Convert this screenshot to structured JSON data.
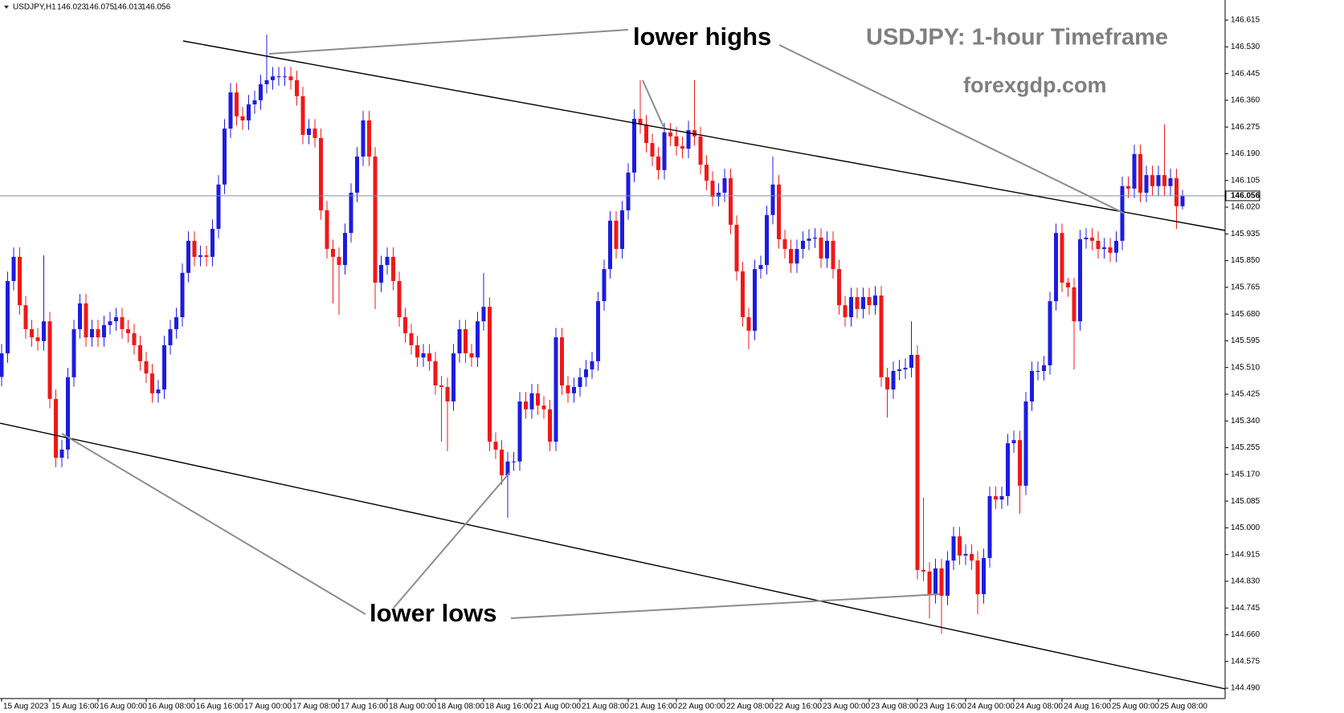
{
  "chart_data": {
    "type": "candlestick",
    "header": "USDJPY,H1",
    "title": "USDJPY: 1-hour Timeframe",
    "subtitle": "forexgdp.com",
    "annotations": [
      "lower highs",
      "lower lows"
    ],
    "up_color": "#1c1ce0",
    "down_color": "#f01818",
    "price_line_color": "#7d8fb3",
    "categories": [
      "15 Aug 2023",
      null,
      null,
      null,
      null,
      null,
      null,
      null,
      "15 Aug 16:00",
      null,
      null,
      null,
      null,
      null,
      null,
      null,
      "16 Aug 00:00",
      null,
      null,
      null,
      null,
      null,
      null,
      null,
      "16 Aug 08:00",
      null,
      null,
      null,
      null,
      null,
      null,
      null,
      "16 Aug 16:00",
      null,
      null,
      null,
      null,
      null,
      null,
      null,
      "17 Aug 00:00",
      null,
      null,
      null,
      null,
      null,
      null,
      null,
      "17 Aug 08:00",
      null,
      null,
      null,
      null,
      null,
      null,
      null,
      "17 Aug 16:00",
      null,
      null,
      null,
      null,
      null,
      null,
      null,
      "18 Aug 00:00",
      null,
      null,
      null,
      null,
      null,
      null,
      null,
      "18 Aug 08:00",
      null,
      null,
      null,
      null,
      null,
      null,
      null,
      "18 Aug 16:00",
      null,
      null,
      null,
      null,
      null,
      null,
      null,
      "21 Aug 00:00",
      null,
      null,
      null,
      null,
      null,
      null,
      null,
      "21 Aug 08:00",
      null,
      null,
      null,
      null,
      null,
      null,
      null,
      "21 Aug 16:00",
      null,
      null,
      null,
      null,
      null,
      null,
      null,
      "22 Aug 00:00",
      null,
      null,
      null,
      null,
      null,
      null,
      null,
      "22 Aug 08:00",
      null,
      null,
      null,
      null,
      null,
      null,
      null,
      "22 Aug 16:00",
      null,
      null,
      null,
      null,
      null,
      null,
      null,
      "23 Aug 00:00",
      null,
      null,
      null,
      null,
      null,
      null,
      null,
      "23 Aug 08:00",
      null,
      null,
      null,
      null,
      null,
      null,
      null,
      "23 Aug 16:00",
      null,
      null,
      null,
      null,
      null,
      null,
      null,
      "24 Aug 00:00",
      null,
      null,
      null,
      null,
      null,
      null,
      null,
      "24 Aug 08:00",
      null,
      null,
      null,
      null,
      null,
      null,
      null,
      "24 Aug 16:00",
      null,
      null,
      null,
      null,
      null,
      null,
      null,
      "25 Aug 00:00",
      null,
      null,
      null,
      null,
      null,
      null,
      null,
      "25 Aug 08:00",
      null,
      null,
      null,
      null
    ],
    "open": [
      145.48,
      145.555,
      145.785,
      145.862,
      145.708,
      145.632,
      145.606,
      145.594,
      145.657,
      145.41,
      145.223,
      145.249,
      145.479,
      145.632,
      145.714,
      145.606,
      145.632,
      145.606,
      145.645,
      145.657,
      145.67,
      145.632,
      145.619,
      145.581,
      145.53,
      145.491,
      145.428,
      145.44,
      145.581,
      145.632,
      145.67,
      145.811,
      145.913,
      145.862,
      145.867,
      145.862,
      145.951,
      146.092,
      146.27,
      146.385,
      146.309,
      146.296,
      146.347,
      146.36,
      146.411,
      146.424,
      146.436,
      146.436,
      146.436,
      146.424,
      146.373,
      146.25,
      146.27,
      146.24,
      146.01,
      145.887,
      145.862,
      145.836,
      145.938,
      146.066,
      146.181,
      146.296,
      146.181,
      145.78,
      145.836,
      145.862,
      145.785,
      145.67,
      145.619,
      145.581,
      145.542,
      145.555,
      145.53,
      145.453,
      145.448,
      145.402,
      145.555,
      145.632,
      145.555,
      145.542,
      145.657,
      145.703,
      145.274,
      145.249,
      145.167,
      145.211,
      145.211,
      145.402,
      145.377,
      145.428,
      145.389,
      145.377,
      145.274,
      145.606,
      145.453,
      145.428,
      145.448,
      145.479,
      145.504,
      145.53,
      145.721,
      145.823,
      145.977,
      145.887,
      146.01,
      146.13,
      146.301,
      146.283,
      146.224,
      146.181,
      146.138,
      146.258,
      146.245,
      146.214,
      146.206,
      146.265,
      146.245,
      146.155,
      146.104,
      146.053,
      146.066,
      146.112,
      145.964,
      145.816,
      145.67,
      145.627,
      145.823,
      145.836,
      145.995,
      146.092,
      145.918,
      145.887,
      145.841,
      145.887,
      145.913,
      145.92,
      145.923,
      145.857,
      145.913,
      145.823,
      145.708,
      145.67,
      145.734,
      145.696,
      145.734,
      145.708,
      145.739,
      145.479,
      145.44,
      145.499,
      145.504,
      145.509,
      145.55,
      144.866,
      144.861,
      144.789,
      144.871,
      144.784,
      144.896,
      144.973,
      144.912,
      144.917,
      144.896,
      144.789,
      144.904,
      145.101,
      145.09,
      145.101,
      145.269,
      145.279,
      145.134,
      145.402,
      145.499,
      145.499,
      145.517,
      145.721,
      145.938,
      145.78,
      145.765,
      145.657,
      145.918,
      145.923,
      145.913,
      145.887,
      145.892,
      145.875,
      145.913,
      146.087,
      146.079,
      146.189,
      146.066,
      146.122,
      146.087,
      146.122,
      146.087,
      146.112,
      146.023
    ],
    "high": [
      145.585,
      145.815,
      145.892,
      145.892,
      145.738,
      145.662,
      145.636,
      145.867,
      145.687,
      145.44,
      145.279,
      145.509,
      145.662,
      145.744,
      145.744,
      145.662,
      145.662,
      145.675,
      145.687,
      145.7,
      145.7,
      145.662,
      145.649,
      145.611,
      145.56,
      145.521,
      145.47,
      145.611,
      145.662,
      145.7,
      145.841,
      145.943,
      145.943,
      145.897,
      145.897,
      145.981,
      146.122,
      146.3,
      146.415,
      146.415,
      146.339,
      146.377,
      146.39,
      146.441,
      146.569,
      146.466,
      146.466,
      146.466,
      146.466,
      146.454,
      146.403,
      146.3,
      146.3,
      146.27,
      146.04,
      145.917,
      145.892,
      145.968,
      146.096,
      146.211,
      146.326,
      146.326,
      146.211,
      145.866,
      145.892,
      145.892,
      145.815,
      145.7,
      145.649,
      145.611,
      145.585,
      145.585,
      145.56,
      145.483,
      145.478,
      145.585,
      145.662,
      145.662,
      145.585,
      145.687,
      145.811,
      145.733,
      145.304,
      145.279,
      145.241,
      145.241,
      145.432,
      145.432,
      145.458,
      145.458,
      145.419,
      145.407,
      145.636,
      145.636,
      145.483,
      145.478,
      145.509,
      145.534,
      145.56,
      145.751,
      145.853,
      146.007,
      146.007,
      146.04,
      146.16,
      146.331,
      146.424,
      146.313,
      146.254,
      146.211,
      146.288,
      146.288,
      146.275,
      146.244,
      146.295,
      146.424,
      146.275,
      146.185,
      146.134,
      146.096,
      146.142,
      146.142,
      145.994,
      145.846,
      145.7,
      145.853,
      145.866,
      146.025,
      146.181,
      146.122,
      145.948,
      145.917,
      145.917,
      145.943,
      145.95,
      145.953,
      145.953,
      145.943,
      145.943,
      145.853,
      145.738,
      145.764,
      145.764,
      145.764,
      145.764,
      145.769,
      145.769,
      145.509,
      145.529,
      145.534,
      145.539,
      145.657,
      145.58,
      145.096,
      144.891,
      144.901,
      144.901,
      144.926,
      145.003,
      145.003,
      144.947,
      144.947,
      144.926,
      144.934,
      145.131,
      145.131,
      145.131,
      145.299,
      145.309,
      145.309,
      145.432,
      145.529,
      145.529,
      145.547,
      145.751,
      145.968,
      145.968,
      145.795,
      145.795,
      145.948,
      145.953,
      145.953,
      145.943,
      145.922,
      145.922,
      145.943,
      146.117,
      146.117,
      146.219,
      146.219,
      146.152,
      146.152,
      146.152,
      146.283,
      146.142,
      146.142,
      146.075
    ],
    "low": [
      145.45,
      145.525,
      145.755,
      145.678,
      145.602,
      145.576,
      145.564,
      145.564,
      145.38,
      145.193,
      145.193,
      145.219,
      145.449,
      145.602,
      145.576,
      145.576,
      145.576,
      145.576,
      145.615,
      145.627,
      145.602,
      145.589,
      145.551,
      145.5,
      145.461,
      145.398,
      145.398,
      145.41,
      145.551,
      145.602,
      145.64,
      145.781,
      145.832,
      145.832,
      145.832,
      145.832,
      145.921,
      146.062,
      146.24,
      146.279,
      146.266,
      146.266,
      146.317,
      146.33,
      146.381,
      146.394,
      146.406,
      146.406,
      146.394,
      146.343,
      146.22,
      146.22,
      146.21,
      145.98,
      145.857,
      145.714,
      145.678,
      145.806,
      145.908,
      146.036,
      146.151,
      146.151,
      145.696,
      145.75,
      145.806,
      145.755,
      145.64,
      145.589,
      145.551,
      145.512,
      145.512,
      145.5,
      145.423,
      145.274,
      145.244,
      145.372,
      145.525,
      145.525,
      145.512,
      145.512,
      145.627,
      145.244,
      145.219,
      145.137,
      145.032,
      145.181,
      145.181,
      145.347,
      145.347,
      145.359,
      145.347,
      145.244,
      145.244,
      145.423,
      145.398,
      145.398,
      145.418,
      145.449,
      145.474,
      145.5,
      145.691,
      145.793,
      145.857,
      145.857,
      145.98,
      146.1,
      146.253,
      146.194,
      146.151,
      146.108,
      146.108,
      146.215,
      146.184,
      146.176,
      146.176,
      146.215,
      146.125,
      146.074,
      146.023,
      146.023,
      146.036,
      145.934,
      145.786,
      145.64,
      145.568,
      145.597,
      145.793,
      145.806,
      145.965,
      145.888,
      145.857,
      145.811,
      145.811,
      145.857,
      145.883,
      145.89,
      145.827,
      145.827,
      145.793,
      145.678,
      145.64,
      145.64,
      145.666,
      145.666,
      145.678,
      145.678,
      145.449,
      145.351,
      145.41,
      145.469,
      145.474,
      145.479,
      144.836,
      144.831,
      144.712,
      144.759,
      144.663,
      144.754,
      144.866,
      144.882,
      144.882,
      144.866,
      144.725,
      144.759,
      144.874,
      145.06,
      145.06,
      145.071,
      145.239,
      145.045,
      145.104,
      145.372,
      145.469,
      145.469,
      145.487,
      145.691,
      145.75,
      145.735,
      145.504,
      145.627,
      145.888,
      145.883,
      145.857,
      145.857,
      145.845,
      145.845,
      145.883,
      146.049,
      146.049,
      146.036,
      146.036,
      146.057,
      146.057,
      146.057,
      146.057,
      145.951,
      146.013
    ],
    "close": [
      145.555,
      145.785,
      145.862,
      145.708,
      145.632,
      145.606,
      145.594,
      145.657,
      145.41,
      145.223,
      145.249,
      145.479,
      145.632,
      145.714,
      145.606,
      145.632,
      145.606,
      145.645,
      145.657,
      145.67,
      145.632,
      145.619,
      145.581,
      145.53,
      145.491,
      145.428,
      145.44,
      145.581,
      145.632,
      145.67,
      145.811,
      145.913,
      145.862,
      145.867,
      145.862,
      145.951,
      146.092,
      146.27,
      146.385,
      146.309,
      146.296,
      146.347,
      146.36,
      146.411,
      146.424,
      146.436,
      146.436,
      146.436,
      146.424,
      146.373,
      146.25,
      146.27,
      146.24,
      146.01,
      145.887,
      145.862,
      145.836,
      145.938,
      146.066,
      146.181,
      146.296,
      146.181,
      145.78,
      145.836,
      145.862,
      145.785,
      145.67,
      145.619,
      145.581,
      145.542,
      145.555,
      145.53,
      145.453,
      145.448,
      145.402,
      145.555,
      145.632,
      145.555,
      145.542,
      145.657,
      145.703,
      145.274,
      145.249,
      145.167,
      145.211,
      145.211,
      145.402,
      145.377,
      145.428,
      145.389,
      145.377,
      145.274,
      145.606,
      145.453,
      145.428,
      145.448,
      145.479,
      145.504,
      145.53,
      145.721,
      145.823,
      145.977,
      145.887,
      146.01,
      146.13,
      146.301,
      146.283,
      146.224,
      146.181,
      146.138,
      146.258,
      146.245,
      146.214,
      146.206,
      146.265,
      146.245,
      146.155,
      146.104,
      146.053,
      146.066,
      146.112,
      145.964,
      145.816,
      145.67,
      145.627,
      145.823,
      145.836,
      145.995,
      146.092,
      145.918,
      145.887,
      145.841,
      145.887,
      145.913,
      145.92,
      145.923,
      145.857,
      145.913,
      145.823,
      145.708,
      145.67,
      145.734,
      145.696,
      145.734,
      145.708,
      145.739,
      145.479,
      145.44,
      145.499,
      145.504,
      145.509,
      145.55,
      144.866,
      144.861,
      144.789,
      144.871,
      144.784,
      144.896,
      144.973,
      144.912,
      144.917,
      144.896,
      144.789,
      144.904,
      145.101,
      145.09,
      145.101,
      145.269,
      145.279,
      145.134,
      145.402,
      145.499,
      145.499,
      145.517,
      145.721,
      145.938,
      145.78,
      145.765,
      145.657,
      145.918,
      145.923,
      145.913,
      145.887,
      145.892,
      145.875,
      145.913,
      146.087,
      146.079,
      146.189,
      146.066,
      146.122,
      146.087,
      146.122,
      146.087,
      146.112,
      146.023,
      146.056
    ],
    "ylim": [
      144.457,
      146.679
    ],
    "yticks": [
      146.615,
      {
        "value": 146.53,
        "label": "146.530"
      },
      146.445,
      {
        "value": 146.36,
        "label": "146.360"
      },
      146.275,
      {
        "value": 146.19,
        "label": "146.190"
      },
      146.105,
      {
        "value": 146.02,
        "label": "146.020"
      },
      145.935,
      {
        "value": 145.85,
        "label": "145.850"
      },
      145.765,
      {
        "value": 145.68,
        "label": "145.680"
      },
      145.595,
      {
        "value": 145.51,
        "label": "145.510"
      },
      145.425,
      {
        "value": 145.34,
        "label": "145.340"
      },
      145.255,
      {
        "value": 145.17,
        "label": "145.170"
      },
      145.085,
      {
        "value": 145,
        "label": "145.000"
      },
      144.915,
      {
        "value": 144.83,
        "label": "144.830"
      },
      144.745,
      {
        "value": 144.66,
        "label": "144.660"
      },
      144.575,
      {
        "value": 144.49,
        "label": "144.490"
      }
    ]
  }
}
